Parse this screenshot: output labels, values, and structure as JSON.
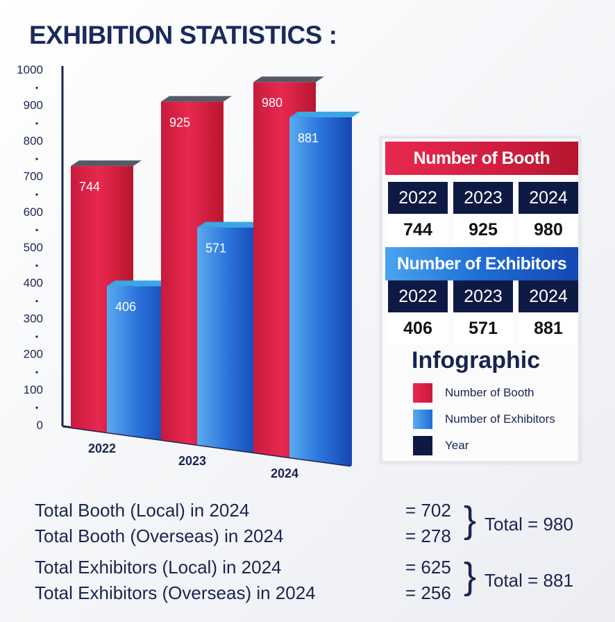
{
  "title": "EXHIBITION STATISTICS :",
  "chart_data": {
    "type": "bar",
    "categories": [
      "2022",
      "2023",
      "2024"
    ],
    "series": [
      {
        "name": "Number of Booth",
        "values": [
          744,
          925,
          980
        ],
        "color": "#e01e48"
      },
      {
        "name": "Number of Exhibitors",
        "values": [
          406,
          571,
          881
        ],
        "color": "#2a6fd6"
      }
    ],
    "ylim": [
      0,
      1000
    ],
    "yticks": [
      "0",
      "100",
      "200",
      "300",
      "400",
      "500",
      "600",
      "700",
      "800",
      "900",
      "1000"
    ]
  },
  "panel": {
    "booth_header": "Number of Booth",
    "booth_rows": {
      "years": [
        "2022",
        "2023",
        "2024"
      ],
      "values": [
        "744",
        "925",
        "980"
      ]
    },
    "exhibitor_header": "Number of Exhibitors",
    "exhibitor_rows": {
      "years": [
        "2022",
        "2023",
        "2024"
      ],
      "values": [
        "406",
        "571",
        "881"
      ]
    },
    "legend_title": "Infographic",
    "legend": [
      {
        "label": "Number of Booth",
        "color": "#e01e48"
      },
      {
        "label": "Number of Exhibitors",
        "color": "#2a6fd6"
      },
      {
        "label": "Year",
        "color": "#0f1a44"
      }
    ]
  },
  "summary": {
    "booth_local": "Total Booth (Local) in 2024",
    "booth_local_value": "= 702",
    "booth_overseas": "Total Booth (Overseas) in 2024",
    "booth_overseas_value": "= 278",
    "booth_total": "Total = 980",
    "exh_local": "Total Exhibitors (Local) in 2024",
    "exh_local_value": "= 625",
    "exh_overseas": "Total Exhibitors (Overseas) in 2024",
    "exh_overseas_value": "= 256",
    "exh_total": "Total = 881"
  }
}
